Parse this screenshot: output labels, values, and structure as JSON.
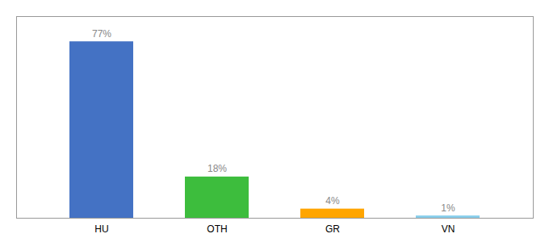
{
  "chart_data": {
    "type": "bar",
    "categories": [
      "HU",
      "OTH",
      "GR",
      "VN"
    ],
    "values": [
      77,
      18,
      4,
      1
    ],
    "colors": [
      "#4472C4",
      "#3DBD3D",
      "#FFA500",
      "#87CEEB"
    ],
    "data_labels": true,
    "value_labels": [
      "77%",
      "18%",
      "4%",
      "1%"
    ],
    "ylim": [
      0,
      88
    ],
    "yticks": [],
    "tick_labels": "x",
    "grid": false
  }
}
